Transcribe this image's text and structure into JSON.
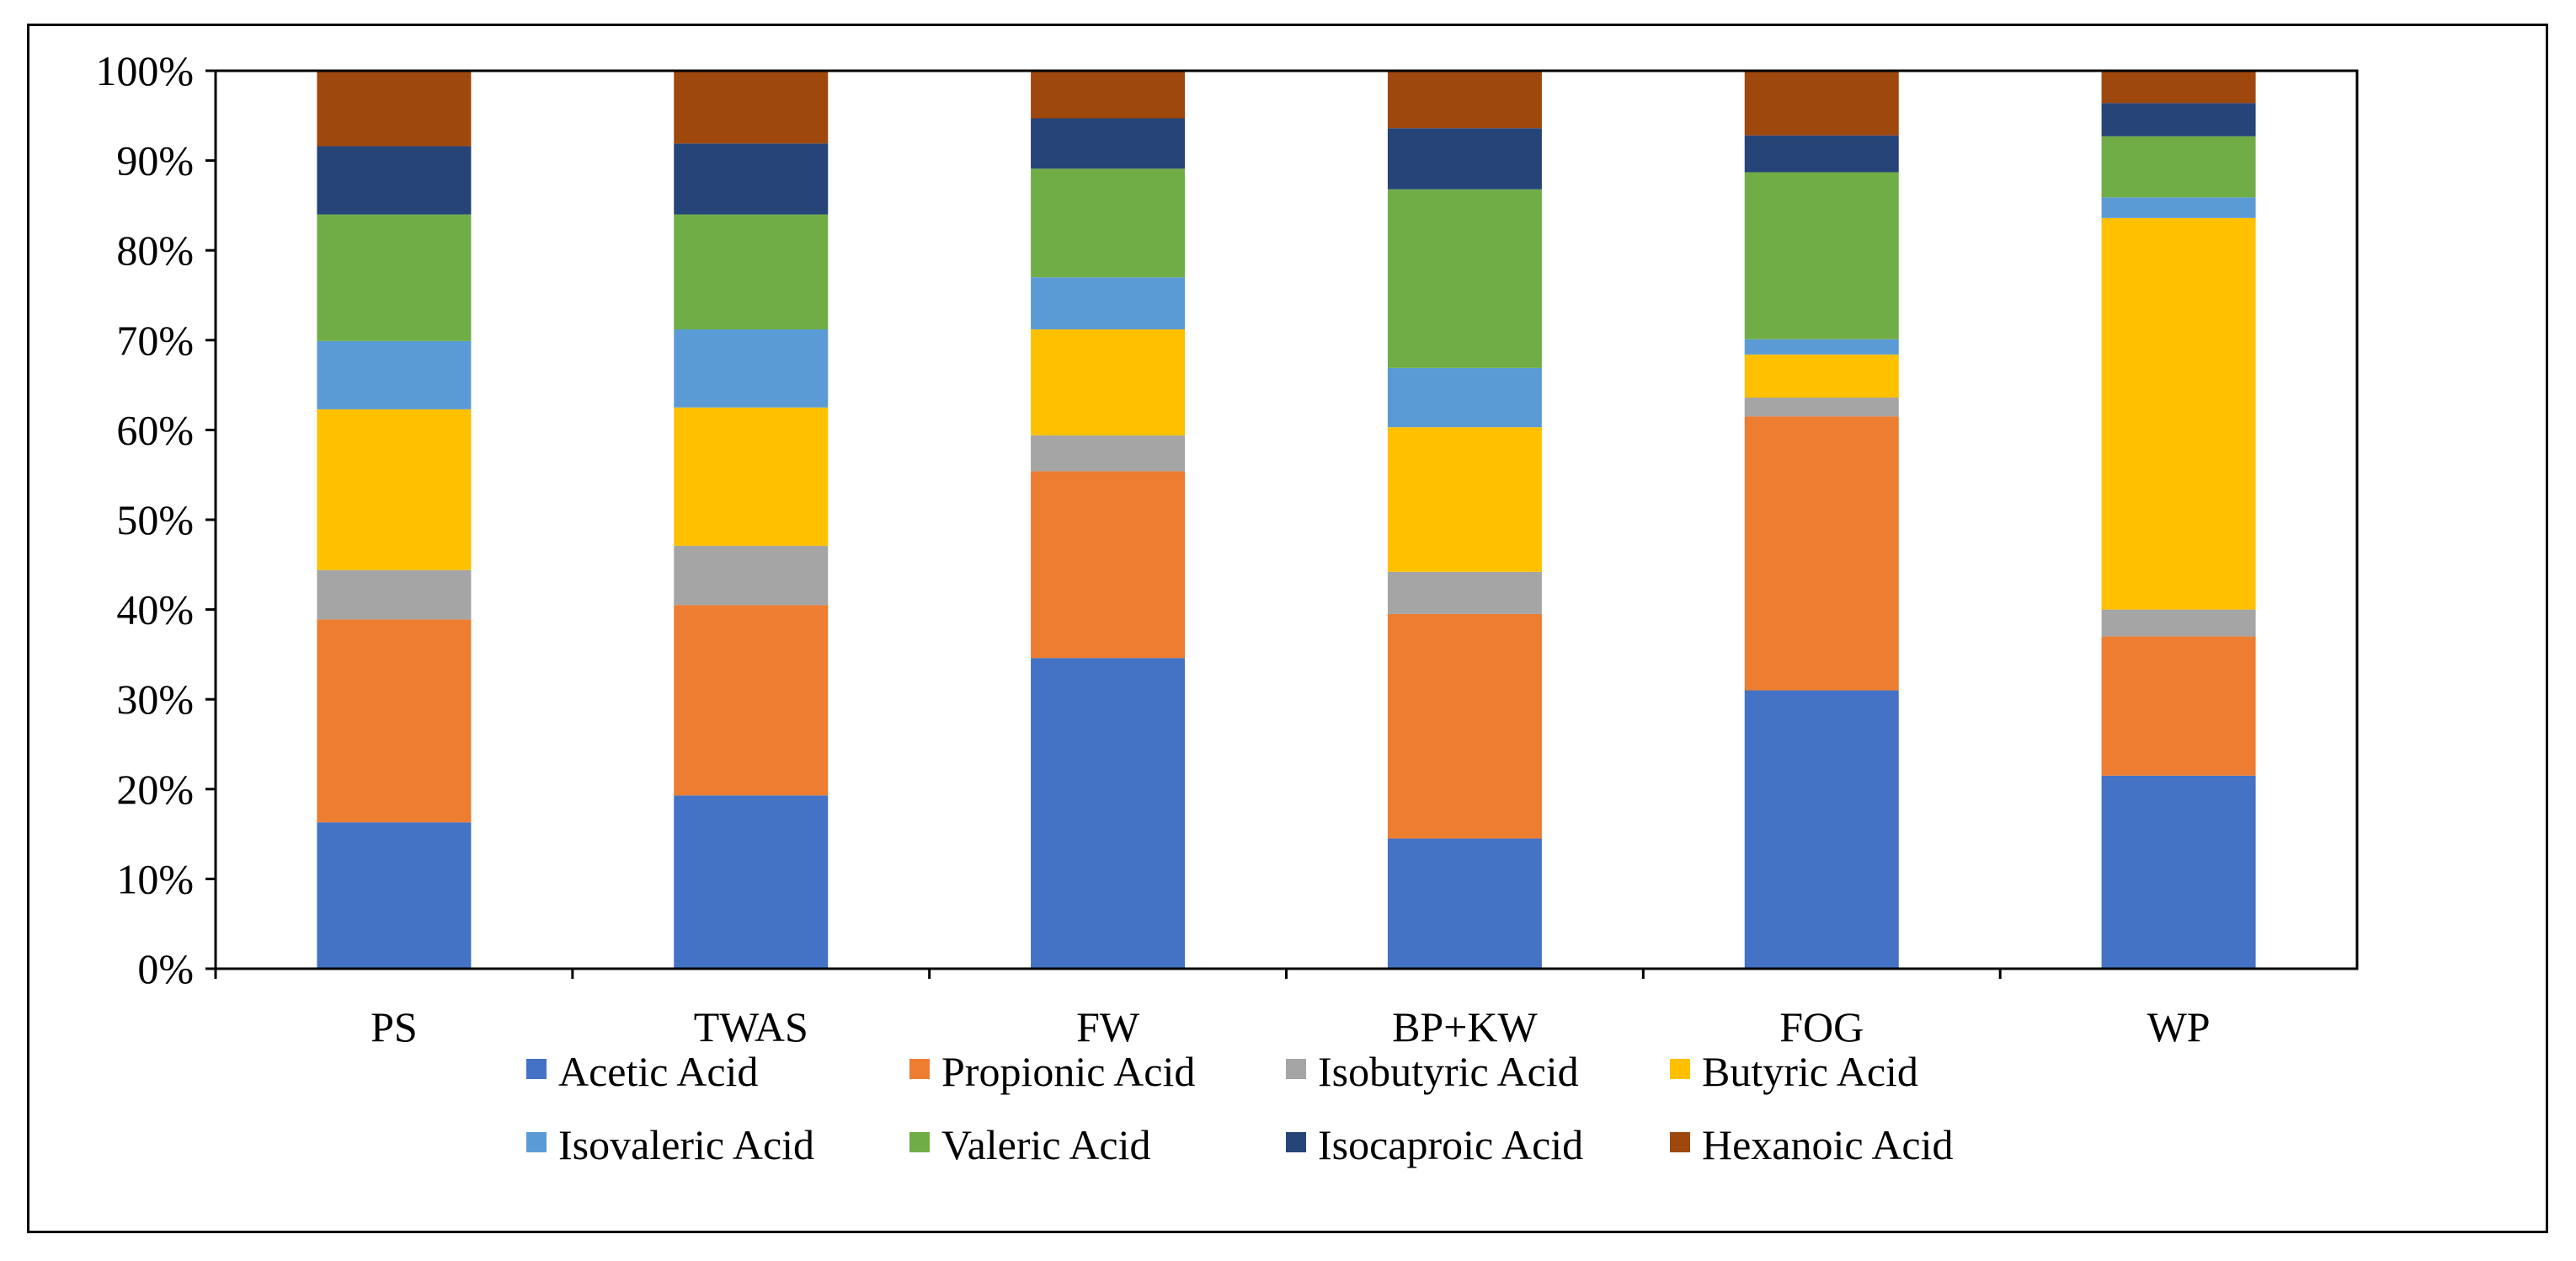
{
  "chart_data": {
    "type": "bar",
    "stacked": true,
    "percent_stacked": true,
    "title": "",
    "xlabel": "",
    "ylabel": "",
    "ylim": [
      0,
      100
    ],
    "yticks": [
      "0%",
      "10%",
      "20%",
      "30%",
      "40%",
      "50%",
      "60%",
      "70%",
      "80%",
      "90%",
      "100%"
    ],
    "categories": [
      "PS",
      "TWAS",
      "FW",
      "BP+KW",
      "FOG",
      "WP"
    ],
    "series": [
      {
        "name": "Acetic Acid",
        "color": "#4472C4",
        "values": [
          16.3,
          19.3,
          34.6,
          14.5,
          31.0,
          21.5
        ]
      },
      {
        "name": "Propionic Acid",
        "color": "#ED7D31",
        "values": [
          22.6,
          21.2,
          20.8,
          25.0,
          30.5,
          15.5
        ]
      },
      {
        "name": "Isobutyric Acid",
        "color": "#A5A5A5",
        "values": [
          5.5,
          6.6,
          4.0,
          4.7,
          2.1,
          3.0
        ]
      },
      {
        "name": "Butyric Acid",
        "color": "#FFC000",
        "values": [
          17.9,
          15.4,
          11.8,
          16.1,
          4.8,
          43.6
        ]
      },
      {
        "name": "Isovaleric Acid",
        "color": "#5B9BD5",
        "values": [
          7.6,
          8.7,
          5.8,
          6.6,
          1.7,
          2.3
        ]
      },
      {
        "name": "Valeric Acid",
        "color": "#70AD47",
        "values": [
          14.1,
          12.8,
          12.1,
          19.9,
          18.6,
          6.8
        ]
      },
      {
        "name": "Isocaproic Acid",
        "color": "#264478",
        "values": [
          7.6,
          7.9,
          5.6,
          6.8,
          4.1,
          3.7
        ]
      },
      {
        "name": "Hexanoic Acid",
        "color": "#9E480E",
        "values": [
          8.4,
          8.1,
          5.3,
          6.4,
          7.2,
          3.6
        ]
      }
    ],
    "legend_position": "bottom",
    "grid": false
  }
}
